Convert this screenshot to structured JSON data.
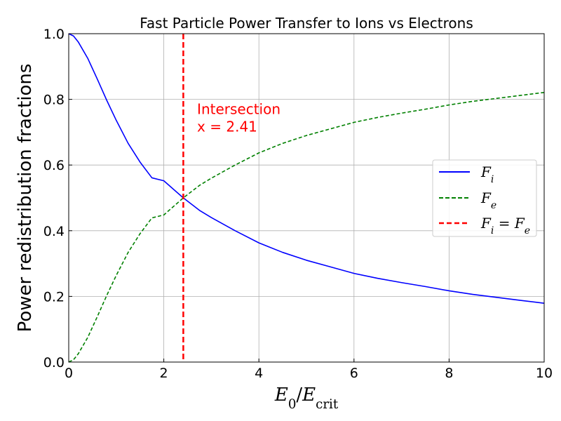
{
  "chart_data": {
    "type": "line",
    "title": "Fast Particle Power Transfer to Ions vs Electrons",
    "xlabel": "E0/Ecrit",
    "ylabel": "Power redistribution fractions",
    "xlim": [
      0,
      10
    ],
    "ylim": [
      0,
      1
    ],
    "x_ticks": [
      0,
      2,
      4,
      6,
      8,
      10
    ],
    "y_ticks": [
      0.0,
      0.2,
      0.4,
      0.6,
      0.8,
      1.0
    ],
    "x_tick_labels": [
      "0",
      "2",
      "4",
      "6",
      "8",
      "10"
    ],
    "y_tick_labels": [
      "0.0",
      "0.2",
      "0.4",
      "0.6",
      "0.8",
      "1.0"
    ],
    "grid": true,
    "legend_placement": "center-right",
    "x": [
      0,
      0.1,
      0.2,
      0.4,
      0.6,
      0.8,
      1.0,
      1.25,
      1.5,
      1.75,
      2.0,
      2.41,
      2.75,
      3.0,
      3.5,
      4.0,
      4.5,
      5.0,
      5.5,
      6.0,
      6.5,
      7.0,
      7.5,
      8.0,
      8.5,
      9.0,
      9.5,
      10.0
    ],
    "series": [
      {
        "name": "Fi",
        "color": "#0000ff",
        "dash": "solid",
        "values": [
          1.0,
          0.993,
          0.975,
          0.925,
          0.862,
          0.797,
          0.736,
          0.666,
          0.609,
          0.561,
          0.552,
          0.5,
          0.462,
          0.44,
          0.4,
          0.363,
          0.334,
          0.31,
          0.29,
          0.27,
          0.255,
          0.242,
          0.23,
          0.217,
          0.206,
          0.197,
          0.188,
          0.179
        ]
      },
      {
        "name": "Fe",
        "color": "#008000",
        "dash": "dashed",
        "values": [
          0.0,
          0.007,
          0.025,
          0.075,
          0.138,
          0.203,
          0.264,
          0.334,
          0.391,
          0.439,
          0.448,
          0.5,
          0.538,
          0.56,
          0.6,
          0.637,
          0.666,
          0.69,
          0.71,
          0.73,
          0.745,
          0.758,
          0.77,
          0.783,
          0.794,
          0.803,
          0.812,
          0.821
        ]
      }
    ],
    "vline": {
      "x": 2.41,
      "name": "Fi = Fe",
      "color": "#ff0000"
    },
    "annotation": {
      "line1": "Intersection",
      "line2": "x = 2.41",
      "x": 2.7,
      "y": 0.755
    }
  }
}
